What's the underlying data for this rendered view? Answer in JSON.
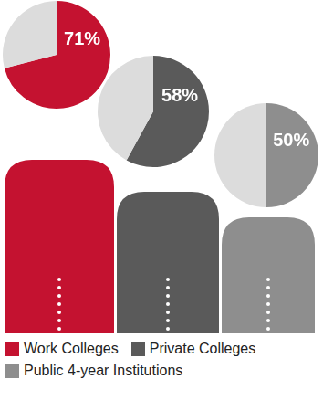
{
  "chart_data": {
    "type": "pie",
    "data_labels": true,
    "legend": "bottom",
    "series": [
      {
        "name": "Work Colleges",
        "color": "#c41230",
        "values": [
          71
        ],
        "value_labels": [
          "71%"
        ]
      },
      {
        "name": "Private Colleges",
        "color": "#5a5a5a",
        "values": [
          58
        ],
        "value_labels": [
          "58%"
        ]
      },
      {
        "name": "Public 4-year Institutions",
        "color": "#8e8e8e",
        "values": [
          50
        ],
        "value_labels": [
          "50%"
        ]
      }
    ]
  }
}
